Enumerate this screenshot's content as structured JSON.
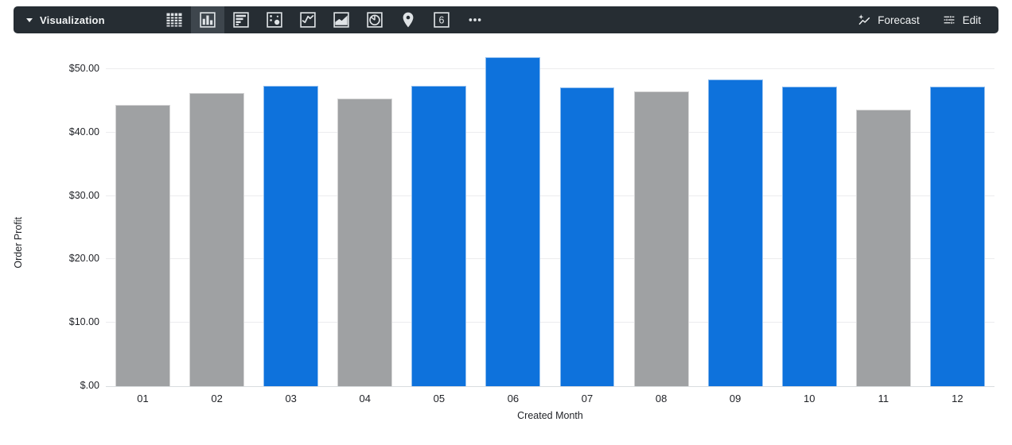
{
  "toolbar": {
    "title": "Visualization",
    "viz_types": [
      {
        "id": "table",
        "icon": "table-icon",
        "selected": false
      },
      {
        "id": "column",
        "icon": "column-chart-icon",
        "selected": true
      },
      {
        "id": "bar",
        "icon": "bar-chart-icon",
        "selected": false
      },
      {
        "id": "scatter",
        "icon": "scatter-plot-icon",
        "selected": false
      },
      {
        "id": "line",
        "icon": "line-chart-icon",
        "selected": false
      },
      {
        "id": "area",
        "icon": "area-chart-icon",
        "selected": false
      },
      {
        "id": "pie",
        "icon": "pie-chart-icon",
        "selected": false
      },
      {
        "id": "map",
        "icon": "map-pin-icon",
        "selected": false
      },
      {
        "id": "single-value",
        "icon": "single-value-icon",
        "selected": false,
        "glyph": "6"
      },
      {
        "id": "more",
        "icon": "more-options-icon",
        "selected": false
      }
    ],
    "forecast_label": "Forecast",
    "edit_label": "Edit"
  },
  "chart_data": {
    "type": "bar",
    "title": "",
    "xlabel": "Created Month",
    "ylabel": "Order Profit",
    "categories": [
      "01",
      "02",
      "03",
      "04",
      "05",
      "06",
      "07",
      "08",
      "09",
      "10",
      "11",
      "12"
    ],
    "values": [
      44.4,
      46.3,
      47.4,
      45.4,
      47.4,
      51.9,
      47.1,
      46.5,
      48.4,
      47.2,
      43.6,
      47.2
    ],
    "bar_color_keys": [
      "gray",
      "gray",
      "blue",
      "gray",
      "blue",
      "blue",
      "blue",
      "gray",
      "blue",
      "blue",
      "gray",
      "blue"
    ],
    "palette": {
      "blue": "#0e72dc",
      "gray": "#9fa1a3"
    },
    "y_ticks": [
      {
        "label": "$50.00",
        "value": 50
      },
      {
        "label": "$40.00",
        "value": 40
      },
      {
        "label": "$30.00",
        "value": 30
      },
      {
        "label": "$20.00",
        "value": 20
      },
      {
        "label": "$10.00",
        "value": 10
      },
      {
        "label": "$.00",
        "value": 0
      }
    ],
    "ylim": [
      0,
      53.4
    ],
    "grid": true,
    "legend": "none"
  },
  "colors": {
    "toolbar_bg": "#262d33",
    "toolbar_selected_bg": "#3e464d",
    "toolbar_icon": "#dfe3e6",
    "toolbar_text": "#f1f3f4",
    "gridline": "#ececee",
    "axis_line": "#d9dcdf",
    "axis_text": "#1f2126"
  }
}
